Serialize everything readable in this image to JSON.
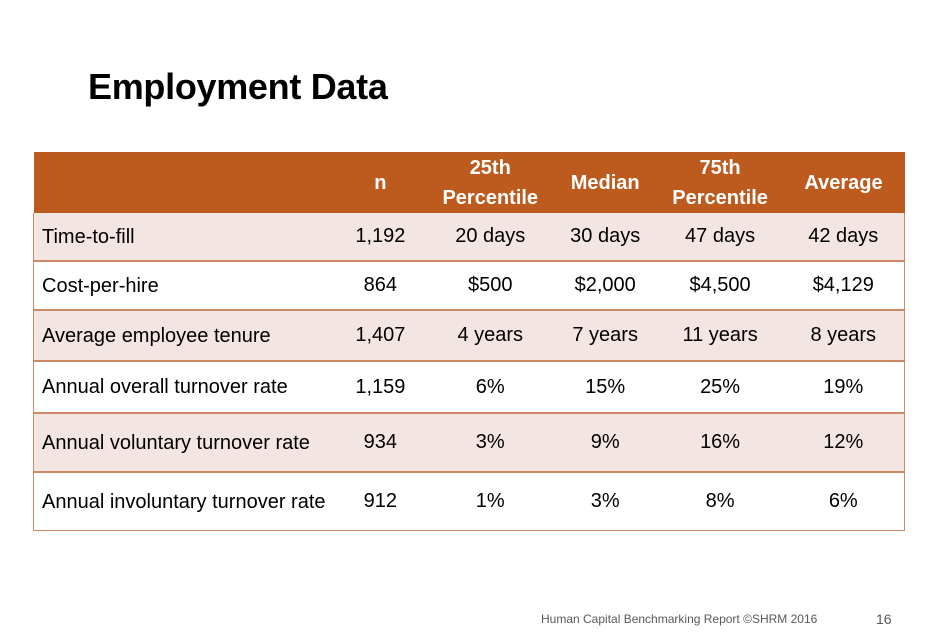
{
  "slide": {
    "title": "Employment Data",
    "footer": "Human Capital Benchmarking Report ©SHRM 2016",
    "page_number": "16"
  },
  "table": {
    "headers": [
      "",
      "n",
      "25th\nPercentile",
      "Median",
      "75th\nPercentile",
      "Average"
    ],
    "rows": [
      [
        "Time-to-fill",
        "1,192",
        "20 days",
        "30 days",
        "47 days",
        "42 days"
      ],
      [
        "Cost-per-hire",
        "864",
        "$500",
        "$2,000",
        "$4,500",
        "$4,129"
      ],
      [
        "Average employee tenure",
        "1,407",
        "4 years",
        "7 years",
        "11 years",
        "8 years"
      ],
      [
        "Annual overall turnover rate",
        "1,159",
        "6%",
        "15%",
        "25%",
        "19%"
      ],
      [
        "Annual voluntary turnover rate",
        "934",
        "3%",
        "9%",
        "16%",
        "12%"
      ],
      [
        "Annual involuntary turnover rate",
        "912",
        "1%",
        "3%",
        "8%",
        "6%"
      ]
    ]
  },
  "colors": {
    "header_bg": "#bd5b1e",
    "band_bg": "#f3e5e1",
    "rule": "#cd8a66"
  }
}
